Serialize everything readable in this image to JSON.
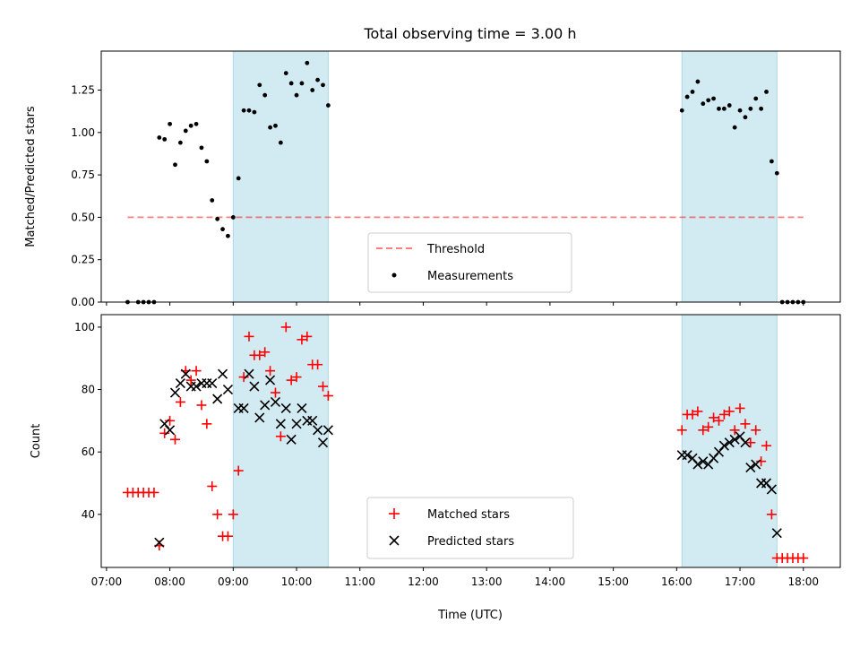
{
  "chart_data": [
    {
      "type": "scatter",
      "title": "Total observing time = 3.00 h",
      "xlabel": "",
      "ylabel": "Matched/Predicted stars",
      "ylim": [
        0,
        1.48
      ],
      "yticks": [
        "0.00",
        "0.25",
        "0.50",
        "0.75",
        "1.00",
        "1.25"
      ],
      "ytick_values": [
        0,
        0.25,
        0.5,
        0.75,
        1.0,
        1.25
      ],
      "shaded_windows": [
        [
          "09:00",
          "10:30"
        ],
        [
          "16:05",
          "17:35"
        ]
      ],
      "shade_color": "#add8e6",
      "legend": {
        "placement": "lower center",
        "threshold_label": "Threshold",
        "measurements_label": "Measurements"
      },
      "threshold": {
        "y": 0.5,
        "x_start": "07:20",
        "x_end": "18:00",
        "color": "#ff0000"
      },
      "series": [
        {
          "name": "Measurements",
          "color": "#000000",
          "points": [
            [
              "07:20",
              0.0
            ],
            [
              "07:30",
              0.0
            ],
            [
              "07:35",
              0.0
            ],
            [
              "07:40",
              0.0
            ],
            [
              "07:45",
              0.0
            ],
            [
              "07:50",
              0.97
            ],
            [
              "07:55",
              0.96
            ],
            [
              "08:00",
              1.05
            ],
            [
              "08:05",
              0.81
            ],
            [
              "08:10",
              0.94
            ],
            [
              "08:15",
              1.01
            ],
            [
              "08:20",
              1.04
            ],
            [
              "08:25",
              1.05
            ],
            [
              "08:30",
              0.91
            ],
            [
              "08:35",
              0.83
            ],
            [
              "08:40",
              0.6
            ],
            [
              "08:45",
              0.49
            ],
            [
              "08:50",
              0.43
            ],
            [
              "08:55",
              0.39
            ],
            [
              "09:00",
              0.5
            ],
            [
              "09:05",
              0.73
            ],
            [
              "09:10",
              1.13
            ],
            [
              "09:15",
              1.13
            ],
            [
              "09:20",
              1.12
            ],
            [
              "09:25",
              1.28
            ],
            [
              "09:30",
              1.22
            ],
            [
              "09:35",
              1.03
            ],
            [
              "09:40",
              1.04
            ],
            [
              "09:45",
              0.94
            ],
            [
              "09:50",
              1.35
            ],
            [
              "09:55",
              1.29
            ],
            [
              "10:00",
              1.22
            ],
            [
              "10:05",
              1.29
            ],
            [
              "10:10",
              1.41
            ],
            [
              "10:15",
              1.25
            ],
            [
              "10:20",
              1.31
            ],
            [
              "10:25",
              1.28
            ],
            [
              "10:30",
              1.16
            ],
            [
              "16:05",
              1.13
            ],
            [
              "16:10",
              1.21
            ],
            [
              "16:15",
              1.24
            ],
            [
              "16:20",
              1.3
            ],
            [
              "16:25",
              1.17
            ],
            [
              "16:30",
              1.19
            ],
            [
              "16:35",
              1.2
            ],
            [
              "16:40",
              1.14
            ],
            [
              "16:45",
              1.14
            ],
            [
              "16:50",
              1.16
            ],
            [
              "16:55",
              1.03
            ],
            [
              "17:00",
              1.13
            ],
            [
              "17:05",
              1.09
            ],
            [
              "17:10",
              1.14
            ],
            [
              "17:15",
              1.2
            ],
            [
              "17:20",
              1.14
            ],
            [
              "17:25",
              1.24
            ],
            [
              "17:30",
              0.83
            ],
            [
              "17:35",
              0.76
            ],
            [
              "17:40",
              0.0
            ],
            [
              "17:45",
              0.0
            ],
            [
              "17:50",
              0.0
            ],
            [
              "17:55",
              0.0
            ],
            [
              "18:00",
              0.0
            ]
          ]
        }
      ]
    },
    {
      "type": "scatter",
      "title": "",
      "xlabel": "Time (UTC)",
      "ylabel": "Count",
      "ylim": [
        23,
        104
      ],
      "yticks": [
        "40",
        "60",
        "80",
        "100"
      ],
      "ytick_values": [
        40,
        60,
        80,
        100
      ],
      "xticks": [
        "07:00",
        "08:00",
        "09:00",
        "10:00",
        "11:00",
        "12:00",
        "13:00",
        "14:00",
        "15:00",
        "16:00",
        "17:00",
        "18:00"
      ],
      "xlim": [
        "06:55",
        "18:35"
      ],
      "shaded_windows": [
        [
          "09:00",
          "10:30"
        ],
        [
          "16:05",
          "17:35"
        ]
      ],
      "shade_color": "#add8e6",
      "legend": {
        "placement": "lower center",
        "matched_label": "Matched stars",
        "predicted_label": "Predicted stars"
      },
      "series": [
        {
          "name": "Matched stars",
          "color": "#ff0000",
          "marker": "plus",
          "points": [
            [
              "07:20",
              47
            ],
            [
              "07:25",
              47
            ],
            [
              "07:30",
              47
            ],
            [
              "07:35",
              47
            ],
            [
              "07:40",
              47
            ],
            [
              "07:45",
              47
            ],
            [
              "07:50",
              30
            ],
            [
              "07:55",
              66
            ],
            [
              "08:00",
              70
            ],
            [
              "08:05",
              64
            ],
            [
              "08:10",
              76
            ],
            [
              "08:15",
              86
            ],
            [
              "08:20",
              83
            ],
            [
              "08:25",
              86
            ],
            [
              "08:30",
              75
            ],
            [
              "08:35",
              69
            ],
            [
              "08:40",
              49
            ],
            [
              "08:45",
              40
            ],
            [
              "08:50",
              33
            ],
            [
              "08:55",
              33
            ],
            [
              "09:00",
              40
            ],
            [
              "09:05",
              54
            ],
            [
              "09:10",
              84
            ],
            [
              "09:15",
              97
            ],
            [
              "09:20",
              91
            ],
            [
              "09:25",
              91
            ],
            [
              "09:30",
              92
            ],
            [
              "09:35",
              86
            ],
            [
              "09:40",
              79
            ],
            [
              "09:45",
              65
            ],
            [
              "09:50",
              100
            ],
            [
              "09:55",
              83
            ],
            [
              "10:00",
              84
            ],
            [
              "10:05",
              96
            ],
            [
              "10:10",
              97
            ],
            [
              "10:15",
              88
            ],
            [
              "10:20",
              88
            ],
            [
              "10:25",
              81
            ],
            [
              "10:30",
              78
            ],
            [
              "16:05",
              67
            ],
            [
              "16:10",
              72
            ],
            [
              "16:15",
              72
            ],
            [
              "16:20",
              73
            ],
            [
              "16:25",
              67
            ],
            [
              "16:30",
              68
            ],
            [
              "16:35",
              71
            ],
            [
              "16:40",
              70
            ],
            [
              "16:45",
              72
            ],
            [
              "16:50",
              73
            ],
            [
              "16:55",
              67
            ],
            [
              "17:00",
              74
            ],
            [
              "17:05",
              69
            ],
            [
              "17:10",
              63
            ],
            [
              "17:15",
              67
            ],
            [
              "17:20",
              57
            ],
            [
              "17:25",
              62
            ],
            [
              "17:30",
              40
            ],
            [
              "17:35",
              26
            ],
            [
              "17:40",
              26
            ],
            [
              "17:45",
              26
            ],
            [
              "17:50",
              26
            ],
            [
              "17:55",
              26
            ],
            [
              "18:00",
              26
            ]
          ]
        },
        {
          "name": "Predicted stars",
          "color": "#000000",
          "marker": "x",
          "points": [
            [
              "07:50",
              31
            ],
            [
              "07:55",
              69
            ],
            [
              "08:00",
              67
            ],
            [
              "08:05",
              79
            ],
            [
              "08:10",
              82
            ],
            [
              "08:15",
              85
            ],
            [
              "08:20",
              81
            ],
            [
              "08:25",
              81
            ],
            [
              "08:30",
              82
            ],
            [
              "08:35",
              82
            ],
            [
              "08:40",
              82
            ],
            [
              "08:45",
              77
            ],
            [
              "08:50",
              85
            ],
            [
              "08:55",
              80
            ],
            [
              "09:05",
              74
            ],
            [
              "09:10",
              74
            ],
            [
              "09:15",
              85
            ],
            [
              "09:20",
              81
            ],
            [
              "09:25",
              71
            ],
            [
              "09:30",
              75
            ],
            [
              "09:35",
              83
            ],
            [
              "09:40",
              76
            ],
            [
              "09:45",
              69
            ],
            [
              "09:50",
              74
            ],
            [
              "09:55",
              64
            ],
            [
              "10:00",
              69
            ],
            [
              "10:05",
              74
            ],
            [
              "10:10",
              70
            ],
            [
              "10:15",
              70
            ],
            [
              "10:20",
              67
            ],
            [
              "10:25",
              63
            ],
            [
              "10:30",
              67
            ],
            [
              "16:05",
              59
            ],
            [
              "16:10",
              59
            ],
            [
              "16:15",
              58
            ],
            [
              "16:20",
              56
            ],
            [
              "16:25",
              57
            ],
            [
              "16:30",
              56
            ],
            [
              "16:35",
              58
            ],
            [
              "16:40",
              60
            ],
            [
              "16:45",
              62
            ],
            [
              "16:50",
              63
            ],
            [
              "16:55",
              64
            ],
            [
              "17:00",
              65
            ],
            [
              "17:05",
              63
            ],
            [
              "17:10",
              55
            ],
            [
              "17:15",
              56
            ],
            [
              "17:20",
              50
            ],
            [
              "17:25",
              50
            ],
            [
              "17:30",
              48
            ],
            [
              "17:35",
              34
            ]
          ]
        }
      ]
    }
  ]
}
